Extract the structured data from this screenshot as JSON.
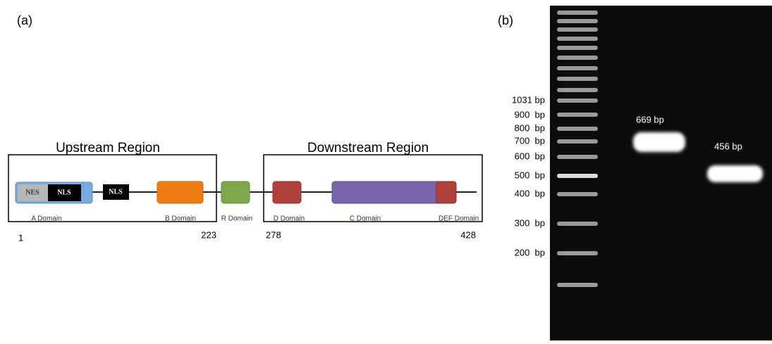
{
  "panel_a": {
    "label": "(a)",
    "regions": [
      "Upstream Region",
      "Downstream Region"
    ],
    "motifs": [
      "NES",
      "NLS",
      "NLS"
    ],
    "domains": [
      "A Domain",
      "B Domain",
      "R Domain",
      "D Domain",
      "C Domain",
      "DEF Domain"
    ],
    "positions": [
      1,
      223,
      278,
      428
    ]
  },
  "panel_b": {
    "label": "(b)",
    "ladder": [
      "1031 bp",
      "900  bp",
      "800  bp",
      "700  bp",
      "600  bp",
      "500  bp",
      "400  bp",
      "300  bp",
      "200  bp"
    ],
    "bands": [
      "669 bp",
      "456  bp"
    ]
  }
}
